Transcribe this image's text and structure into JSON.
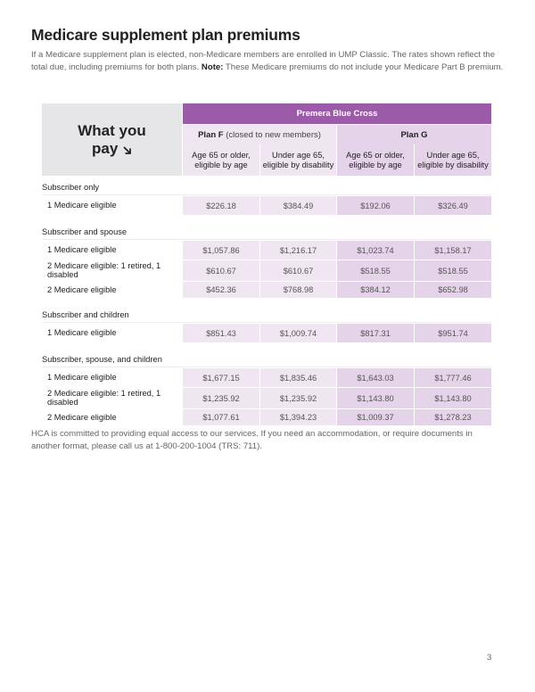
{
  "title": "Medicare supplement plan premiums",
  "intro": {
    "text": "If a Medicare supplement plan is elected, non-Medicare members are enrolled in UMP Classic. The rates shown reflect the total due, including premiums for both plans. ",
    "note_label": "Note:",
    "note_text": " These Medicare premiums do not include your Medicare Part B premium."
  },
  "table": {
    "corner_line1": "What you",
    "corner_line2": "pay",
    "corner_icon": "arrow-down-right-icon",
    "carrier": "Premera Blue Cross",
    "plan_f": {
      "name": "Plan F",
      "note": "(closed to new members)"
    },
    "plan_g": {
      "name": "Plan G"
    },
    "sub_headers": [
      [
        "Age 65 or older,",
        "eligible by age"
      ],
      [
        "Under age 65,",
        "eligible by disability"
      ],
      [
        "Age 65 or older,",
        "eligible by age"
      ],
      [
        "Under age 65,",
        "eligible by disability"
      ]
    ],
    "sections": [
      {
        "label": "Subscriber only",
        "rows": [
          {
            "label": "1 Medicare eligible",
            "values": [
              "$226.18",
              "$384.49",
              "$192.06",
              "$326.49"
            ]
          }
        ]
      },
      {
        "label": "Subscriber and spouse",
        "rows": [
          {
            "label": "1 Medicare eligible",
            "values": [
              "$1,057.86",
              "$1,216.17",
              "$1,023.74",
              "$1,158.17"
            ]
          },
          {
            "label": "2 Medicare eligible: 1 retired, 1 disabled",
            "values": [
              "$610.67",
              "$610.67",
              "$518.55",
              "$518.55"
            ]
          },
          {
            "label": "2 Medicare eligible",
            "values": [
              "$452.36",
              "$768.98",
              "$384.12",
              "$652.98"
            ]
          }
        ]
      },
      {
        "label": "Subscriber and children",
        "rows": [
          {
            "label": "1 Medicare eligible",
            "values": [
              "$851.43",
              "$1,009.74",
              "$817.31",
              "$951.74"
            ]
          }
        ]
      },
      {
        "label": "Subscriber, spouse, and children",
        "rows": [
          {
            "label": "1 Medicare eligible",
            "values": [
              "$1,677.15",
              "$1,835.46",
              "$1,643.03",
              "$1,777.46"
            ]
          },
          {
            "label": "2 Medicare eligible: 1 retired, 1 disabled",
            "values": [
              "$1,235.92",
              "$1,235.92",
              "$1,143.80",
              "$1,143.80"
            ]
          },
          {
            "label": "2 Medicare eligible",
            "values": [
              "$1,077.61",
              "$1,394.23",
              "$1,009.37",
              "$1,278.23"
            ]
          }
        ]
      }
    ]
  },
  "colors": {
    "header_purple": "#9c5ba8",
    "plan_f_bg": "#f0e6f2",
    "plan_g_bg": "#e5d3e9",
    "corner_bg": "#e6e6e8"
  },
  "footer": "HCA is committed to providing equal access to our services. If you need an accommodation, or require documents in another format, please call us at 1-800-200-1004 (TRS: 711).",
  "page_number": "3"
}
